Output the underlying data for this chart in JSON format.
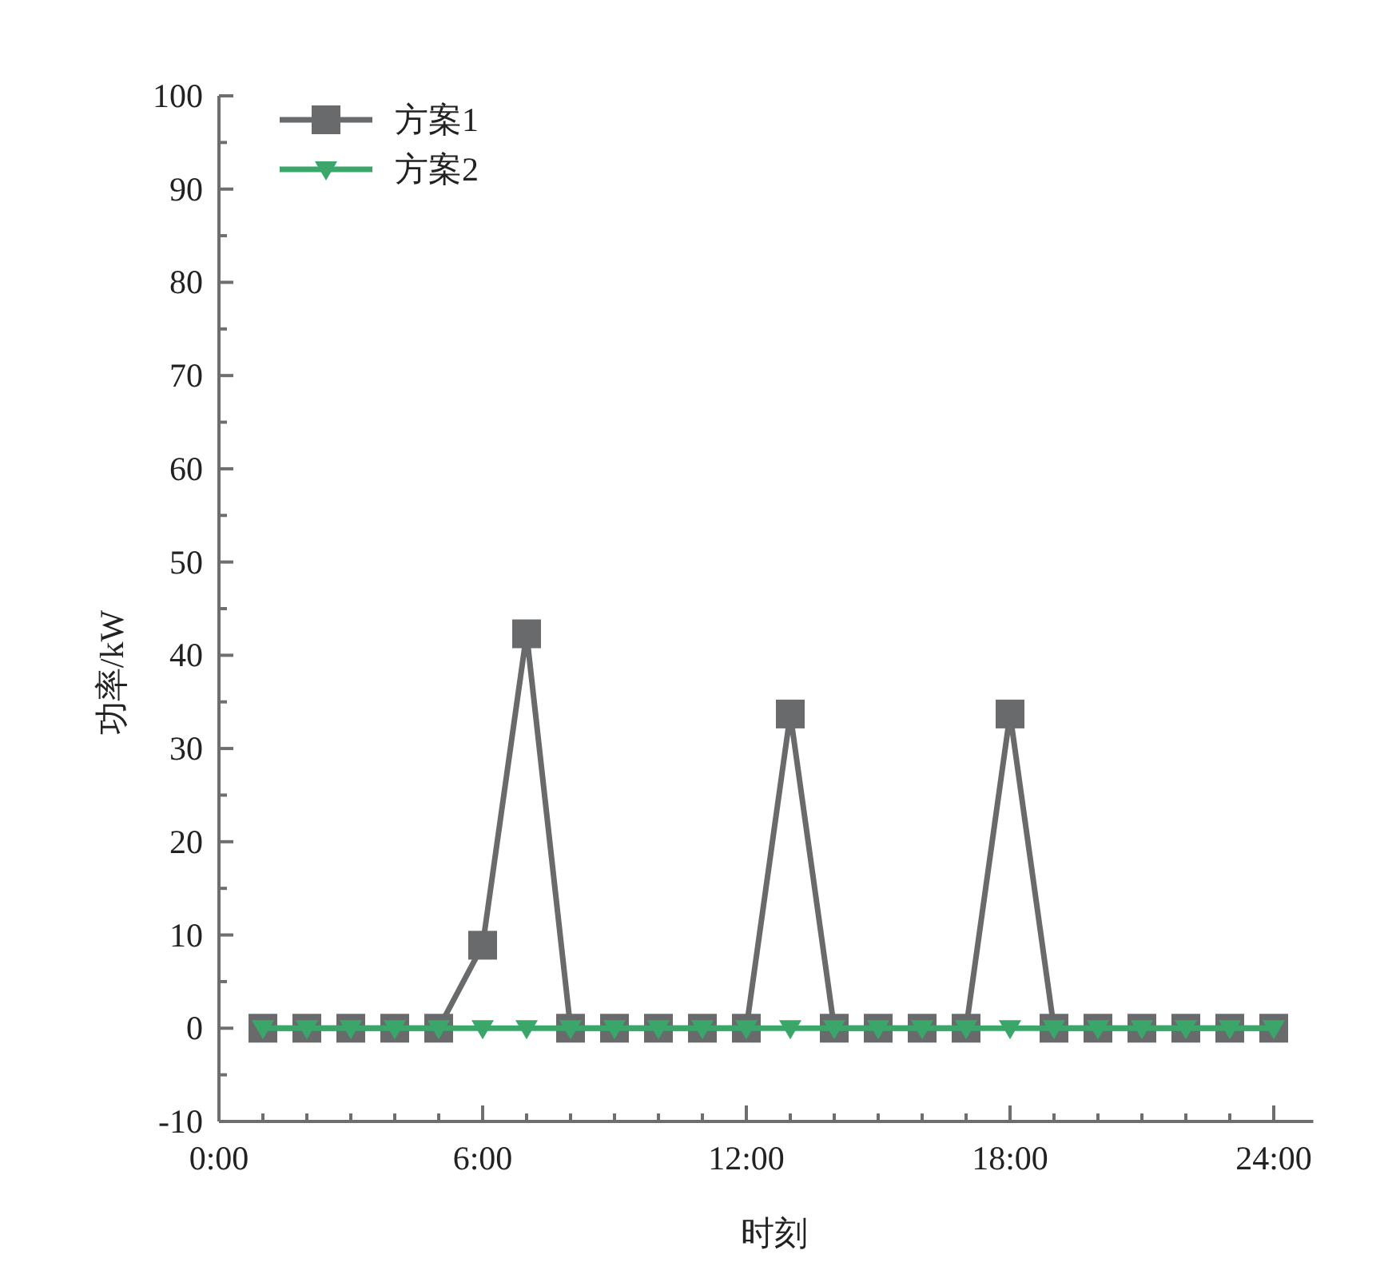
{
  "chart_data": {
    "type": "line",
    "xlabel": "时刻",
    "ylabel": "功率/kW",
    "x": [
      1,
      2,
      3,
      4,
      5,
      6,
      7,
      8,
      9,
      10,
      11,
      12,
      13,
      14,
      15,
      16,
      17,
      18,
      19,
      20,
      21,
      22,
      23,
      24
    ],
    "series": [
      {
        "name": "方案1",
        "color": "#696a6c",
        "marker": "square",
        "values": [
          0,
          0,
          0,
          0,
          0,
          8.9,
          42.3,
          0,
          0,
          0,
          0,
          0,
          33.7,
          0,
          0,
          0,
          0,
          33.7,
          0,
          0,
          0,
          0,
          0,
          0
        ]
      },
      {
        "name": "方案2",
        "color": "#3aa66a",
        "marker": "triangle",
        "values": [
          0,
          0,
          0,
          0,
          0,
          0,
          0,
          0,
          0,
          0,
          0,
          0,
          0,
          0,
          0,
          0,
          0,
          0,
          0,
          0,
          0,
          0,
          0,
          0
        ]
      }
    ],
    "xlim": [
      0,
      24.9
    ],
    "ylim": [
      -10,
      100
    ],
    "xticks": [
      {
        "value": 0,
        "label": "0:00"
      },
      {
        "value": 6,
        "label": "6:00"
      },
      {
        "value": 12,
        "label": "12:00"
      },
      {
        "value": 18,
        "label": "18:00"
      },
      {
        "value": 24,
        "label": "24:00"
      }
    ],
    "yticks": [
      -10,
      0,
      10,
      20,
      30,
      40,
      50,
      60,
      70,
      80,
      90,
      100
    ],
    "grid": false,
    "legend": "top left"
  }
}
